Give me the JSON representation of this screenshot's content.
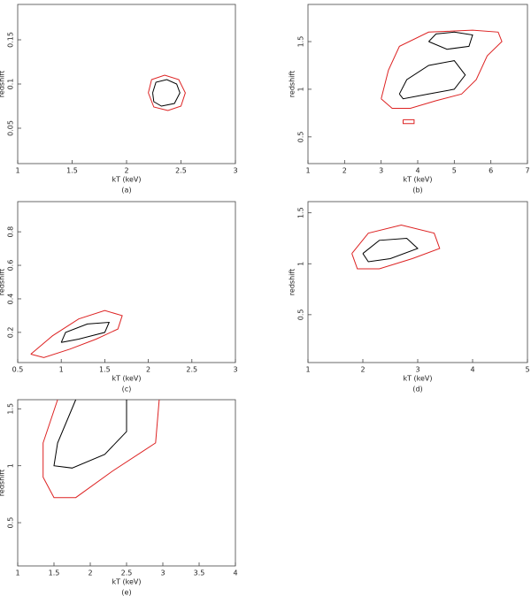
{
  "chart_data": [
    {
      "type": "line",
      "caption": "(a)",
      "x_label": "kT (keV)",
      "y_label": "redshift",
      "xlim": [
        1,
        3
      ],
      "xticks": [
        1,
        1.5,
        2,
        2.5,
        3
      ],
      "ylim": [
        0.01,
        0.19
      ],
      "yticks": [
        0.05,
        0.1,
        0.15
      ],
      "series": [
        {
          "color": "#dd2222",
          "x": [
            2.2,
            2.23,
            2.35,
            2.48,
            2.54,
            2.5,
            2.38,
            2.25,
            2.2
          ],
          "values": [
            0.09,
            0.105,
            0.11,
            0.105,
            0.09,
            0.075,
            0.07,
            0.074,
            0.09
          ]
        },
        {
          "color": "#000000",
          "x": [
            2.24,
            2.27,
            2.37,
            2.46,
            2.49,
            2.44,
            2.32,
            2.25,
            2.24
          ],
          "values": [
            0.09,
            0.102,
            0.105,
            0.1,
            0.09,
            0.078,
            0.075,
            0.08,
            0.09
          ]
        }
      ]
    },
    {
      "type": "line",
      "caption": "(b)",
      "x_label": "kT (keV)",
      "y_label": "redshift",
      "xlim": [
        1,
        7
      ],
      "xticks": [
        1,
        2,
        3,
        4,
        5,
        6,
        7
      ],
      "ylim": [
        0.22,
        1.89
      ],
      "yticks": [
        0.5,
        1,
        1.5
      ],
      "series": [
        {
          "color": "#dd2222",
          "x": [
            3.0,
            3.2,
            3.5,
            4.3,
            5.5,
            6.2,
            6.3,
            5.9,
            5.6,
            5.2,
            4.5,
            3.8,
            3.3,
            3.0
          ],
          "values": [
            0.9,
            1.2,
            1.45,
            1.6,
            1.62,
            1.6,
            1.5,
            1.35,
            1.1,
            0.95,
            0.88,
            0.8,
            0.8,
            0.9
          ]
        },
        {
          "color": "#dd2222",
          "x": [
            3.6,
            3.9,
            3.9,
            3.6,
            3.6
          ],
          "values": [
            0.68,
            0.68,
            0.64,
            0.64,
            0.68
          ]
        },
        {
          "color": "#000000",
          "x": [
            4.3,
            4.5,
            5.0,
            5.5,
            5.4,
            4.8,
            4.3
          ],
          "values": [
            1.5,
            1.58,
            1.6,
            1.57,
            1.45,
            1.42,
            1.5
          ]
        },
        {
          "color": "#000000",
          "x": [
            3.5,
            3.7,
            4.3,
            5.0,
            5.3,
            5.0,
            4.3,
            3.6,
            3.5
          ],
          "values": [
            0.95,
            1.1,
            1.25,
            1.3,
            1.15,
            1.0,
            0.95,
            0.9,
            0.95
          ]
        }
      ]
    },
    {
      "type": "line",
      "caption": "(c)",
      "x_label": "kT (keV)",
      "y_label": "redshift",
      "xlim": [
        0.5,
        3
      ],
      "xticks": [
        0.5,
        1,
        1.5,
        2,
        2.5,
        3
      ],
      "ylim": [
        0.02,
        0.98
      ],
      "yticks": [
        0.2,
        0.4,
        0.6,
        0.8
      ],
      "series": [
        {
          "color": "#dd2222",
          "x": [
            0.65,
            0.9,
            1.2,
            1.5,
            1.7,
            1.65,
            1.4,
            1.1,
            0.8,
            0.65
          ],
          "values": [
            0.07,
            0.18,
            0.28,
            0.33,
            0.3,
            0.22,
            0.16,
            0.1,
            0.05,
            0.07
          ]
        },
        {
          "color": "#000000",
          "x": [
            1.0,
            1.05,
            1.3,
            1.55,
            1.5,
            1.2,
            1.0
          ],
          "values": [
            0.14,
            0.2,
            0.25,
            0.26,
            0.2,
            0.16,
            0.14
          ]
        }
      ]
    },
    {
      "type": "line",
      "caption": "(d)",
      "x_label": "kT (keV)",
      "y_label": "redshift",
      "xlim": [
        1,
        5
      ],
      "xticks": [
        1,
        2,
        3,
        4,
        5
      ],
      "ylim": [
        0.03,
        1.61
      ],
      "yticks": [
        0.5,
        1,
        1.5
      ],
      "series": [
        {
          "color": "#dd2222",
          "x": [
            1.8,
            2.1,
            2.7,
            3.3,
            3.4,
            2.9,
            2.3,
            1.9,
            1.8
          ],
          "values": [
            1.1,
            1.3,
            1.38,
            1.3,
            1.15,
            1.05,
            0.95,
            0.95,
            1.1
          ]
        },
        {
          "color": "#000000",
          "x": [
            2.0,
            2.3,
            2.8,
            3.0,
            2.5,
            2.1,
            2.0
          ],
          "values": [
            1.1,
            1.23,
            1.25,
            1.15,
            1.05,
            1.02,
            1.1
          ]
        }
      ]
    },
    {
      "type": "line",
      "caption": "(e)",
      "x_label": "kT (keV)",
      "y_label": "redshift",
      "xlim": [
        1,
        4
      ],
      "xticks": [
        1,
        1.5,
        2,
        2.5,
        3,
        3.5,
        4
      ],
      "ylim": [
        0.12,
        1.58
      ],
      "yticks": [
        0.5,
        1,
        1.5
      ],
      "series": [
        {
          "color": "#dd2222",
          "x": [
            1.55,
            1.35,
            1.35,
            1.5,
            1.8,
            2.3,
            2.9,
            2.95
          ],
          "values": [
            1.58,
            1.2,
            0.9,
            0.72,
            0.72,
            0.95,
            1.2,
            1.58
          ]
        },
        {
          "color": "#000000",
          "x": [
            1.8,
            1.55,
            1.5,
            1.75,
            2.2,
            2.5,
            2.5
          ],
          "values": [
            1.58,
            1.2,
            1.0,
            0.98,
            1.1,
            1.3,
            1.58
          ]
        }
      ]
    }
  ]
}
